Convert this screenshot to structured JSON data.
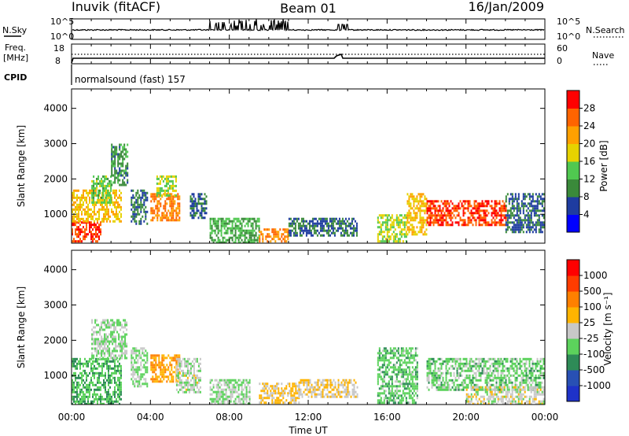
{
  "header": {
    "station": "Inuvik (fitACF)",
    "beam": "Beam 01",
    "date": "16/Jan/2009"
  },
  "top_panels": {
    "nsky_label": "N.Sky",
    "nsky_ticks": [
      "10^5",
      "10^0"
    ],
    "nsearch_label": "N.Search",
    "nsearch_ticks": [
      "10^5",
      "10^0"
    ],
    "freq_label_1": "Freq.",
    "freq_label_2": "[MHz]",
    "freq_ticks": [
      "18",
      "8"
    ],
    "nave_label": "Nave",
    "nave_ticks": [
      "60",
      "0"
    ],
    "cpid_label": "CPID",
    "cpid_text": "normalsound (fast) 157"
  },
  "power_panel": {
    "ylabel": "Slant Range [km]",
    "yticks": [
      "4000",
      "3000",
      "2000",
      "1000"
    ],
    "colorbar_label": "Power [dB]",
    "colorbar_ticks": [
      "28",
      "24",
      "20",
      "16",
      "12",
      "8",
      "4"
    ],
    "colors": [
      "#0000ff",
      "#1e3ca0",
      "#3a8a3a",
      "#50c850",
      "#e6d200",
      "#ffa000",
      "#ff6400",
      "#ff0000"
    ]
  },
  "velocity_panel": {
    "ylabel": "Slant Range [km]",
    "yticks": [
      "4000",
      "3000",
      "2000",
      "1000"
    ],
    "colorbar_label": "Velocity [m s⁻¹]",
    "colorbar_ticks": [
      "1000",
      "500",
      "100",
      "25",
      "-25",
      "-100",
      "-500",
      "-1000"
    ],
    "colors": [
      "#1e32c8",
      "#2850b4",
      "#2e8b57",
      "#5cd25c",
      "#c8c8c8",
      "#ffb400",
      "#ff8000",
      "#ff3c00",
      "#ff0000"
    ]
  },
  "xaxis": {
    "label": "Time UT",
    "ticks": [
      "00:00",
      "04:00",
      "08:00",
      "12:00",
      "16:00",
      "20:00",
      "00:00"
    ]
  },
  "chart_data": [
    {
      "type": "heatmap",
      "title": "Power [dB]",
      "xlabel": "Time UT",
      "ylabel": "Slant Range [km]",
      "xlim": [
        0,
        24
      ],
      "ylim": [
        180,
        4550
      ],
      "clim": [
        0,
        32
      ],
      "regions": [
        {
          "t": [
            0.0,
            1.5
          ],
          "r": [
            200,
            800
          ],
          "v": 28
        },
        {
          "t": [
            0.0,
            2.5
          ],
          "r": [
            800,
            1700
          ],
          "v": 20
        },
        {
          "t": [
            1.0,
            2.0
          ],
          "r": [
            1300,
            2100
          ],
          "v": 14
        },
        {
          "t": [
            2.0,
            2.8
          ],
          "r": [
            1800,
            3000
          ],
          "v": 10
        },
        {
          "t": [
            3.0,
            3.8
          ],
          "r": [
            700,
            1700
          ],
          "v": 8
        },
        {
          "t": [
            4.0,
            5.5
          ],
          "r": [
            800,
            1600
          ],
          "v": 24
        },
        {
          "t": [
            4.3,
            5.3
          ],
          "r": [
            1500,
            2100
          ],
          "v": 16
        },
        {
          "t": [
            6.0,
            6.8
          ],
          "r": [
            900,
            1600
          ],
          "v": 8
        },
        {
          "t": [
            7.0,
            9.5
          ],
          "r": [
            200,
            900
          ],
          "v": 12
        },
        {
          "t": [
            9.5,
            11.0
          ],
          "r": [
            200,
            600
          ],
          "v": 24
        },
        {
          "t": [
            11.0,
            14.5
          ],
          "r": [
            400,
            900
          ],
          "v": 8
        },
        {
          "t": [
            15.5,
            17.0
          ],
          "r": [
            200,
            1000
          ],
          "v": 16
        },
        {
          "t": [
            17.0,
            18.0
          ],
          "r": [
            400,
            1600
          ],
          "v": 20
        },
        {
          "t": [
            18.0,
            22.0
          ],
          "r": [
            700,
            1400
          ],
          "v": 28
        },
        {
          "t": [
            22.0,
            24.0
          ],
          "r": [
            500,
            1600
          ],
          "v": 8
        }
      ]
    },
    {
      "type": "heatmap",
      "title": "Velocity [m s⁻¹]",
      "xlabel": "Time UT",
      "ylabel": "Slant Range [km]",
      "xlim": [
        0,
        24
      ],
      "ylim": [
        180,
        4550
      ],
      "clim": [
        -1000,
        1000
      ],
      "regions": [
        {
          "t": [
            0.0,
            2.5
          ],
          "r": [
            200,
            1500
          ],
          "v": -300
        },
        {
          "t": [
            1.0,
            2.8
          ],
          "r": [
            1500,
            2600
          ],
          "v": -100
        },
        {
          "t": [
            3.0,
            3.8
          ],
          "r": [
            700,
            1800
          ],
          "v": -150
        },
        {
          "t": [
            4.0,
            5.5
          ],
          "r": [
            800,
            1600
          ],
          "v": 300
        },
        {
          "t": [
            5.3,
            6.5
          ],
          "r": [
            500,
            1500
          ],
          "v": -50
        },
        {
          "t": [
            7.0,
            9.0
          ],
          "r": [
            200,
            900
          ],
          "v": -100
        },
        {
          "t": [
            9.5,
            11.5
          ],
          "r": [
            200,
            800
          ],
          "v": 150
        },
        {
          "t": [
            11.5,
            14.5
          ],
          "r": [
            400,
            900
          ],
          "v": 100
        },
        {
          "t": [
            15.5,
            17.5
          ],
          "r": [
            200,
            1800
          ],
          "v": -250
        },
        {
          "t": [
            18.0,
            24.0
          ],
          "r": [
            600,
            1500
          ],
          "v": -200
        },
        {
          "t": [
            20.0,
            24.0
          ],
          "r": [
            200,
            700
          ],
          "v": 0
        }
      ]
    }
  ]
}
